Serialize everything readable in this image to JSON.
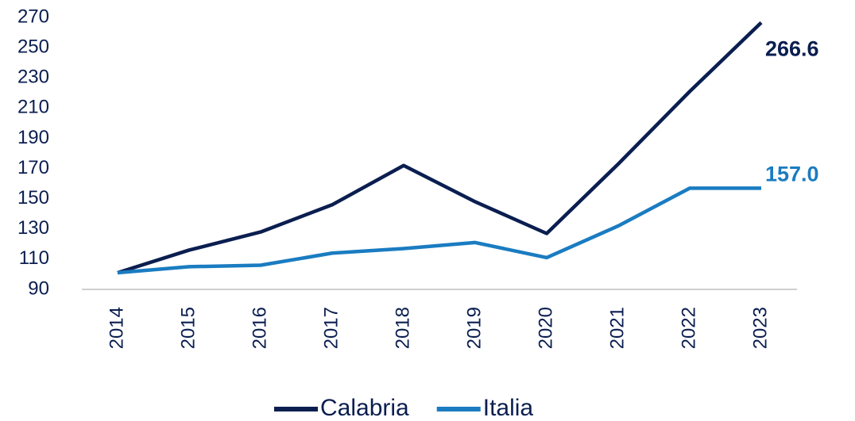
{
  "chart_data": {
    "type": "line",
    "categories": [
      "2014",
      "2015",
      "2016",
      "2017",
      "2018",
      "2019",
      "2020",
      "2021",
      "2022",
      "2023"
    ],
    "series": [
      {
        "name": "Calabria",
        "color": "#0b1e50",
        "values": [
          101,
          116,
          128,
          146,
          172,
          148,
          127,
          173,
          221,
          266.6
        ],
        "value_labels": [
          null,
          null,
          null,
          null,
          null,
          null,
          null,
          null,
          null,
          "266.6"
        ]
      },
      {
        "name": "Italia",
        "color": "#1a7cc1",
        "values": [
          101,
          105,
          106,
          114,
          117,
          121,
          111,
          132,
          157,
          157.0
        ],
        "value_labels": [
          null,
          null,
          null,
          null,
          null,
          null,
          null,
          null,
          null,
          "157.0"
        ]
      }
    ],
    "ylim": [
      90,
      270
    ],
    "yticks": [
      90,
      110,
      130,
      150,
      170,
      190,
      210,
      230,
      250,
      270
    ],
    "grid": false
  }
}
